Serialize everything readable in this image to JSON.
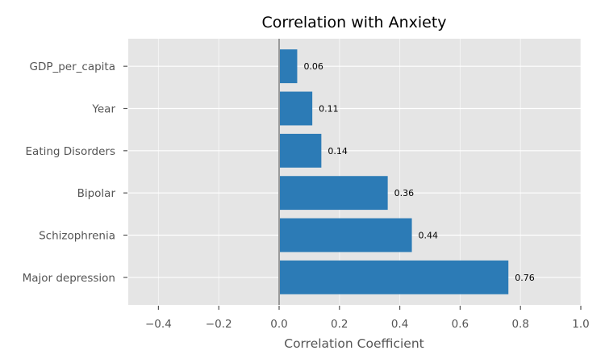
{
  "chart_data": {
    "type": "bar",
    "orientation": "horizontal",
    "title": "Correlation with Anxiety",
    "xlabel": "Correlation Coefficient",
    "ylabel": "",
    "categories": [
      "Major depression",
      "Schizophrenia",
      "Bipolar",
      "Eating Disorders",
      "Year",
      "GDP_per_capita"
    ],
    "values": [
      0.76,
      0.44,
      0.36,
      0.14,
      0.11,
      0.06
    ],
    "data_labels": [
      "0.76",
      "0.44",
      "0.36",
      "0.14",
      "0.11",
      "0.06"
    ],
    "xlim": [
      -0.5,
      1.0
    ],
    "xticks": [
      -0.4,
      -0.2,
      0.0,
      0.2,
      0.4,
      0.6,
      0.8,
      1.0
    ],
    "xtick_labels": [
      "−0.4",
      "−0.2",
      "0.0",
      "0.2",
      "0.4",
      "0.6",
      "0.8",
      "1.0"
    ],
    "grid": true,
    "zero_line": true,
    "legend": "none",
    "colors": {
      "bar": "#2c7bb6",
      "plot_background": "#e5e5e5",
      "grid": "#ffffff",
      "zero_line": "#999999"
    }
  }
}
